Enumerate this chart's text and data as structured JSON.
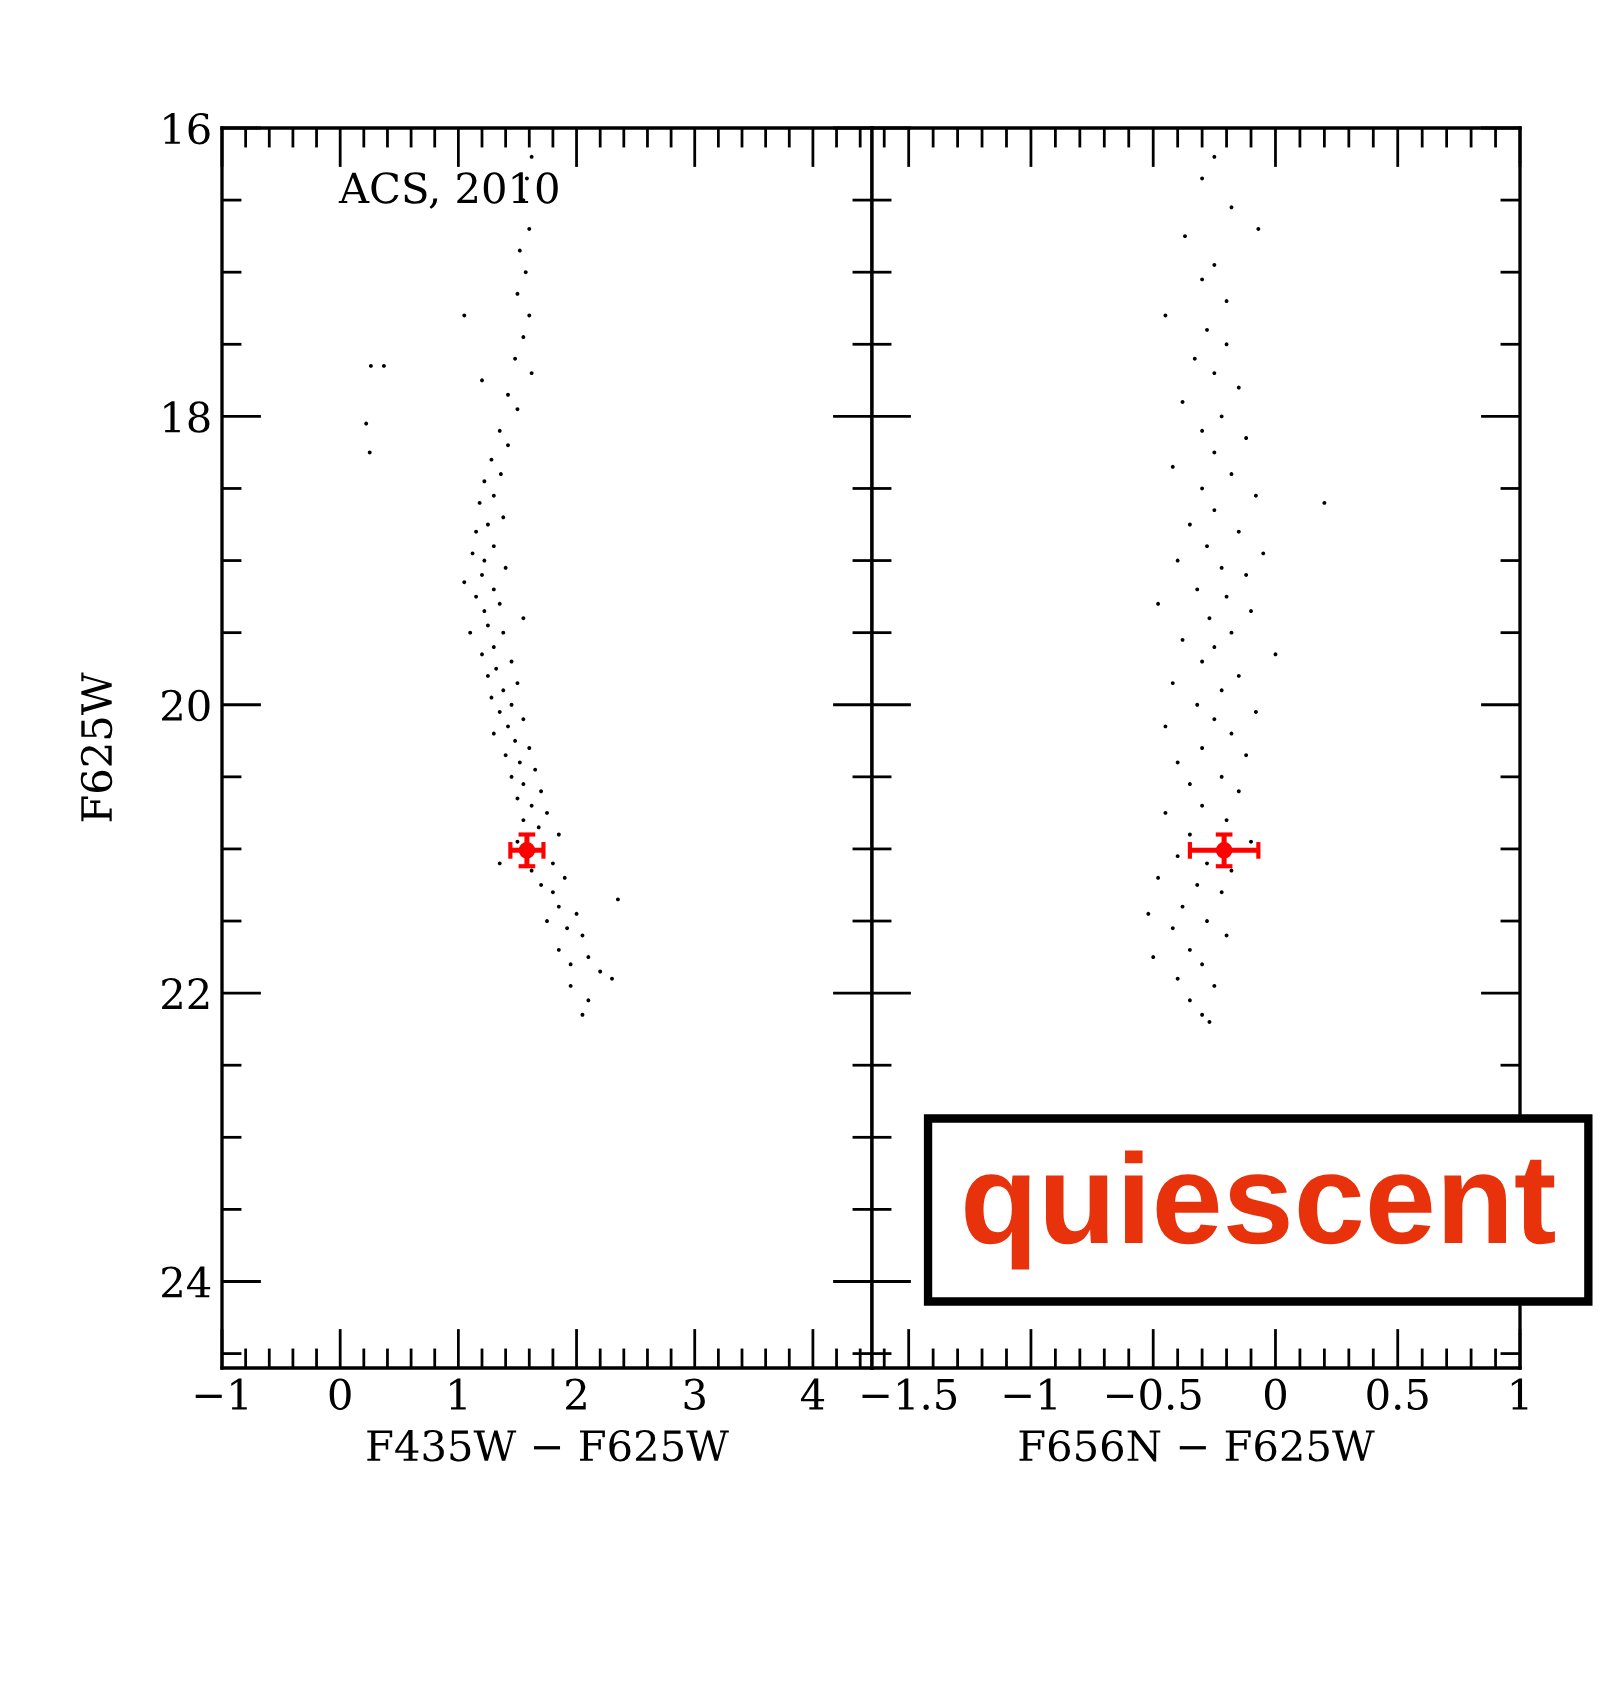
{
  "chart_data": [
    {
      "type": "scatter",
      "xlabel": "F435W − F625W",
      "ylabel": "F625W",
      "annotations": [
        "ACS, 2010"
      ],
      "marker": "circle",
      "grid": false,
      "legend": false,
      "xlim": [
        -1,
        4.5
      ],
      "ylim": [
        24.6,
        16
      ],
      "xticks": [
        {
          "value": -1,
          "label": "−1"
        },
        0,
        1,
        2,
        3,
        4,
        {
          "value": -0.8,
          "label": null
        },
        {
          "value": -0.6,
          "label": null
        },
        {
          "value": -0.4,
          "label": null
        },
        {
          "value": -0.2,
          "label": null
        },
        {
          "value": 0.2,
          "label": null
        },
        {
          "value": 0.4,
          "label": null
        },
        {
          "value": 0.6,
          "label": null
        },
        {
          "value": 0.8,
          "label": null
        },
        {
          "value": 1.2,
          "label": null
        },
        {
          "value": 1.4,
          "label": null
        },
        {
          "value": 1.6,
          "label": null
        },
        {
          "value": 1.8,
          "label": null
        },
        {
          "value": 2.2,
          "label": null
        },
        {
          "value": 2.4,
          "label": null
        },
        {
          "value": 2.6,
          "label": null
        },
        {
          "value": 2.8,
          "label": null
        },
        {
          "value": 3.2,
          "label": null
        },
        {
          "value": 3.4,
          "label": null
        },
        {
          "value": 3.6,
          "label": null
        },
        {
          "value": 3.8,
          "label": null
        },
        {
          "value": 4.2,
          "label": null
        },
        {
          "value": 4.4,
          "label": null
        }
      ],
      "yticks": [
        16,
        18,
        20,
        22,
        24,
        {
          "value": 16.5,
          "label": null
        },
        {
          "value": 17,
          "label": null
        },
        {
          "value": 17.5,
          "label": null
        },
        {
          "value": 18.5,
          "label": null
        },
        {
          "value": 19,
          "label": null
        },
        {
          "value": 19.5,
          "label": null
        },
        {
          "value": 20.5,
          "label": null
        },
        {
          "value": 21,
          "label": null
        },
        {
          "value": 21.5,
          "label": null
        },
        {
          "value": 22.5,
          "label": null
        },
        {
          "value": 23,
          "label": null
        },
        {
          "value": 23.5,
          "label": null
        },
        {
          "value": 24.5,
          "label": null
        }
      ],
      "series": [
        {
          "color": "#000000",
          "x": [
            1.62,
            1.58,
            1.55,
            1.6,
            1.52,
            1.57,
            1.5,
            1.6,
            1.05,
            1.55,
            1.48,
            0.26,
            0.37,
            1.62,
            1.2,
            1.42,
            1.5,
            0.22,
            1.35,
            1.42,
            0.25,
            1.28,
            1.36,
            1.22,
            1.3,
            1.18,
            1.38,
            1.25,
            1.15,
            1.3,
            1.12,
            1.22,
            1.4,
            1.2,
            1.05,
            1.3,
            1.15,
            1.35,
            1.22,
            1.55,
            1.25,
            1.1,
            1.38,
            1.3,
            1.2,
            1.45,
            1.32,
            1.25,
            1.5,
            1.38,
            1.28,
            1.45,
            1.35,
            1.55,
            1.42,
            1.3,
            1.48,
            1.6,
            1.4,
            1.52,
            1.65,
            1.45,
            1.55,
            1.7,
            1.5,
            1.62,
            1.75,
            1.55,
            1.68,
            1.85,
            1.5,
            1.35,
            1.8,
            1.62,
            1.9,
            1.7,
            1.8,
            2.35,
            1.85,
            2.0,
            1.75,
            1.92,
            2.05,
            1.85,
            2.1,
            1.95,
            2.2,
            2.3,
            1.95,
            2.1,
            2.05
          ],
          "values": [
            16.2,
            16.35,
            16.5,
            16.7,
            16.85,
            17.0,
            17.15,
            17.3,
            17.3,
            17.45,
            17.6,
            17.65,
            17.65,
            17.7,
            17.75,
            17.85,
            17.95,
            18.05,
            18.1,
            18.2,
            18.25,
            18.3,
            18.4,
            18.45,
            18.55,
            18.6,
            18.7,
            18.75,
            18.8,
            18.9,
            18.95,
            19.0,
            19.05,
            19.1,
            19.15,
            19.2,
            19.25,
            19.3,
            19.35,
            19.4,
            19.45,
            19.5,
            19.5,
            19.6,
            19.65,
            19.7,
            19.75,
            19.8,
            19.85,
            19.9,
            19.95,
            20.0,
            20.05,
            20.1,
            20.15,
            20.2,
            20.25,
            20.3,
            20.35,
            20.4,
            20.45,
            20.5,
            20.55,
            20.6,
            20.65,
            20.7,
            20.75,
            20.8,
            20.85,
            20.9,
            20.95,
            21.1,
            21.1,
            21.15,
            21.2,
            21.25,
            21.3,
            21.35,
            21.4,
            21.45,
            21.5,
            21.55,
            21.6,
            21.7,
            21.75,
            21.8,
            21.85,
            21.9,
            21.95,
            22.05,
            22.15
          ]
        },
        {
          "color": "#ff0000",
          "x": [
            1.58
          ],
          "values": [
            21.01
          ],
          "errors": [
            0.11
          ],
          "xerrors": [
            0.14
          ]
        }
      ]
    },
    {
      "type": "scatter",
      "xlabel": "F656N − F625W",
      "annotations": [
        "quiescent"
      ],
      "marker": "circle",
      "grid": false,
      "legend": false,
      "tick_labels": "x",
      "xlim": [
        -1.65,
        1.0
      ],
      "ylim": [
        24.6,
        16
      ],
      "xticks": [
        {
          "value": -1.5,
          "label": "−1.5"
        },
        {
          "value": -1,
          "label": "−1"
        },
        {
          "value": -0.5,
          "label": "−0.5"
        },
        0,
        0.5,
        1,
        {
          "value": -1.6,
          "label": null
        },
        {
          "value": -1.4,
          "label": null
        },
        {
          "value": -1.3,
          "label": null
        },
        {
          "value": -1.2,
          "label": null
        },
        {
          "value": -1.1,
          "label": null
        },
        {
          "value": -0.9,
          "label": null
        },
        {
          "value": -0.8,
          "label": null
        },
        {
          "value": -0.7,
          "label": null
        },
        {
          "value": -0.6,
          "label": null
        },
        {
          "value": -0.4,
          "label": null
        },
        {
          "value": -0.3,
          "label": null
        },
        {
          "value": -0.2,
          "label": null
        },
        {
          "value": -0.1,
          "label": null
        },
        {
          "value": 0.1,
          "label": null
        },
        {
          "value": 0.2,
          "label": null
        },
        {
          "value": 0.3,
          "label": null
        },
        {
          "value": 0.4,
          "label": null
        },
        {
          "value": 0.6,
          "label": null
        },
        {
          "value": 0.7,
          "label": null
        },
        {
          "value": 0.8,
          "label": null
        },
        {
          "value": 0.9,
          "label": null
        }
      ],
      "yticks": [
        16,
        18,
        20,
        22,
        24,
        {
          "value": 16.5,
          "label": null
        },
        {
          "value": 17,
          "label": null
        },
        {
          "value": 17.5,
          "label": null
        },
        {
          "value": 18.5,
          "label": null
        },
        {
          "value": 19,
          "label": null
        },
        {
          "value": 19.5,
          "label": null
        },
        {
          "value": 20.5,
          "label": null
        },
        {
          "value": 21,
          "label": null
        },
        {
          "value": 21.5,
          "label": null
        },
        {
          "value": 22.5,
          "label": null
        },
        {
          "value": 23,
          "label": null
        },
        {
          "value": 23.5,
          "label": null
        },
        {
          "value": 24.5,
          "label": null
        }
      ],
      "series": [
        {
          "color": "#000000",
          "x": [
            -0.25,
            -0.3,
            -0.18,
            -0.07,
            -0.37,
            -0.25,
            -0.3,
            -0.2,
            -0.45,
            -0.28,
            -0.2,
            -0.33,
            -0.25,
            -0.15,
            -0.38,
            -0.22,
            -0.3,
            -0.12,
            -0.25,
            -0.42,
            -0.18,
            -0.3,
            -0.08,
            0.2,
            -0.25,
            -0.35,
            -0.15,
            -0.28,
            -0.05,
            -0.4,
            -0.22,
            -0.12,
            -0.32,
            -0.2,
            -0.48,
            -0.1,
            -0.27,
            -0.18,
            -0.38,
            -0.25,
            0.0,
            -0.3,
            -0.15,
            -0.42,
            -0.22,
            -0.32,
            -0.08,
            -0.25,
            -0.45,
            -0.18,
            -0.3,
            -0.12,
            -0.4,
            -0.22,
            -0.35,
            -0.15,
            -0.3,
            -0.45,
            -0.2,
            -0.35,
            -0.1,
            -0.4,
            -0.28,
            -0.18,
            -0.48,
            -0.32,
            -0.22,
            -0.38,
            -0.52,
            -0.28,
            -0.42,
            -0.2,
            -0.35,
            -0.5,
            -0.3,
            -0.4,
            -0.25,
            -0.35,
            -0.3,
            -0.27
          ],
          "values": [
            16.2,
            16.35,
            16.55,
            16.7,
            16.75,
            16.95,
            17.05,
            17.2,
            17.3,
            17.4,
            17.5,
            17.6,
            17.7,
            17.8,
            17.9,
            18.0,
            18.1,
            18.15,
            18.25,
            18.35,
            18.4,
            18.5,
            18.55,
            18.6,
            18.65,
            18.75,
            18.8,
            18.9,
            18.95,
            19.0,
            19.05,
            19.1,
            19.2,
            19.25,
            19.3,
            19.35,
            19.4,
            19.5,
            19.55,
            19.6,
            19.65,
            19.7,
            19.8,
            19.85,
            19.9,
            20.0,
            20.05,
            20.1,
            20.15,
            20.2,
            20.3,
            20.35,
            20.4,
            20.5,
            20.55,
            20.6,
            20.7,
            20.75,
            20.8,
            20.9,
            20.95,
            21.05,
            21.1,
            21.15,
            21.2,
            21.25,
            21.3,
            21.4,
            21.45,
            21.5,
            21.55,
            21.6,
            21.7,
            21.75,
            21.8,
            21.9,
            21.95,
            22.05,
            22.15,
            22.2
          ]
        },
        {
          "color": "#ff0000",
          "x": [
            -0.21
          ],
          "values": [
            21.01
          ],
          "errors": [
            0.11
          ],
          "xerrors": [
            0.14
          ]
        }
      ]
    }
  ]
}
